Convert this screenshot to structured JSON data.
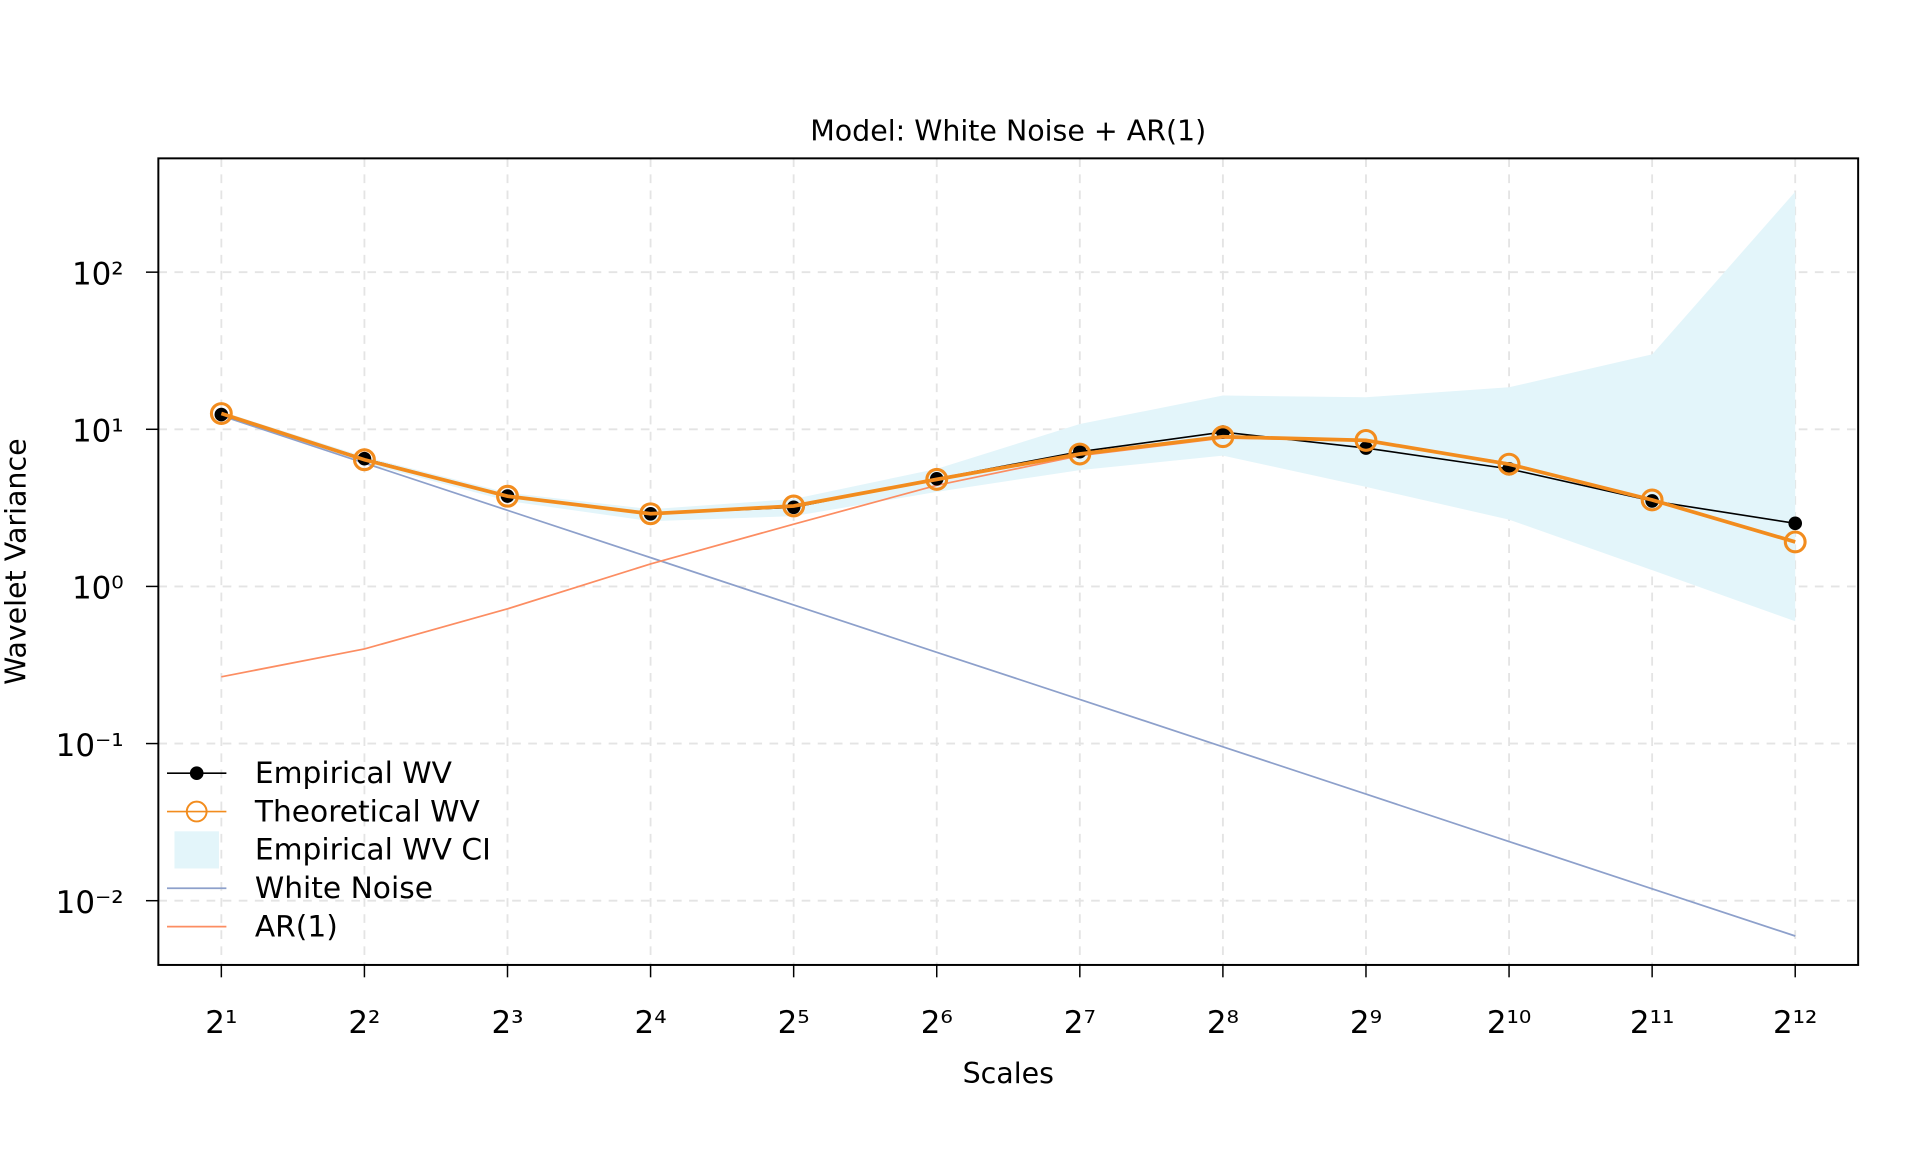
{
  "chart_data": {
    "type": "line",
    "title": "Model: White Noise + AR(1)",
    "x_label": "Scales",
    "y_label": "Wavelet Variance",
    "x_log_base": 2,
    "y_log_base": 10,
    "grid": true,
    "legend_position": "bottomleft",
    "x": [
      2,
      4,
      8,
      16,
      32,
      64,
      128,
      256,
      512,
      1024,
      2048,
      4096
    ],
    "xlim": [
      1.474,
      5556
    ],
    "ylim": [
      0.0039,
      530
    ],
    "xticks": [
      {
        "value": 2,
        "label": "2¹"
      },
      {
        "value": 4,
        "label": "2²"
      },
      {
        "value": 8,
        "label": "2³"
      },
      {
        "value": 16,
        "label": "2⁴"
      },
      {
        "value": 32,
        "label": "2⁵"
      },
      {
        "value": 64,
        "label": "2⁶"
      },
      {
        "value": 128,
        "label": "2⁷"
      },
      {
        "value": 256,
        "label": "2⁸"
      },
      {
        "value": 512,
        "label": "2⁹"
      },
      {
        "value": 1024,
        "label": "2¹⁰"
      },
      {
        "value": 2048,
        "label": "2¹¹"
      },
      {
        "value": 4096,
        "label": "2¹²"
      }
    ],
    "yticks": [
      {
        "value": 100,
        "label": "10²"
      },
      {
        "value": 10,
        "label": "10¹"
      },
      {
        "value": 1,
        "label": "10⁰"
      },
      {
        "value": 0.1,
        "label": "10⁻¹"
      },
      {
        "value": 0.01,
        "label": "10⁻²"
      }
    ],
    "series": [
      {
        "name": "Empirical WV",
        "color": "#000000",
        "marker": "filled",
        "values": [
          12.4,
          6.5,
          3.76,
          2.9,
          3.19,
          4.84,
          7.2,
          9.6,
          7.6,
          5.6,
          3.5,
          2.52
        ]
      },
      {
        "name": "Theoretical WV",
        "color": "#f28c1e",
        "marker": "open",
        "values": [
          12.6,
          6.4,
          3.75,
          2.9,
          3.25,
          4.8,
          6.96,
          8.97,
          8.5,
          6.0,
          3.55,
          1.92
        ]
      },
      {
        "name": "Empirical WV CI",
        "color": "#e3f5fa",
        "marker": "band",
        "lower": [
          12.0,
          6.1,
          3.5,
          2.6,
          2.8,
          4.0,
          5.5,
          6.8,
          4.3,
          2.66,
          1.27,
          0.6
        ],
        "upper": [
          13.0,
          6.7,
          3.95,
          3.1,
          3.6,
          5.6,
          10.8,
          16.4,
          16.0,
          18.5,
          30,
          325
        ]
      },
      {
        "name": "White Noise",
        "color": "#8da0cb",
        "marker": "none",
        "values": [
          12.2,
          6.1,
          3.05,
          1.525,
          0.7625,
          0.381,
          0.191,
          0.0953,
          0.0477,
          0.0238,
          0.0119,
          0.00596
        ]
      },
      {
        "name": "AR(1)",
        "color": "#fc8d62",
        "marker": "none",
        "values": [
          0.266,
          0.4,
          0.72,
          1.39,
          2.49,
          4.4,
          6.8,
          8.8,
          8.45,
          6.08,
          3.54,
          1.93
        ]
      }
    ]
  }
}
